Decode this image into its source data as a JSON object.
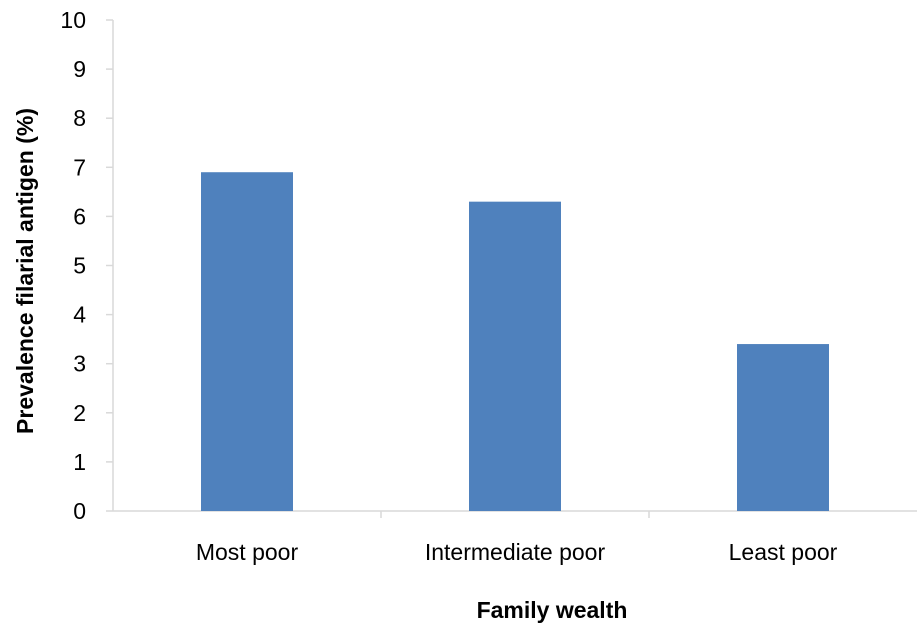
{
  "chart_data": {
    "type": "bar",
    "title": "",
    "xlabel": "Family wealth",
    "ylabel": "Prevalence filarial antigen (%)",
    "categories": [
      "Most poor",
      "Intermediate poor",
      "Least poor"
    ],
    "values": [
      6.9,
      6.3,
      3.4
    ],
    "ylim": [
      0,
      10
    ],
    "yticks": [
      "0",
      "1",
      "2",
      "3",
      "4",
      "5",
      "6",
      "7",
      "8",
      "9",
      "10"
    ],
    "grid": false,
    "legend": "none",
    "bar_color": "#4f81bd",
    "axis_color": "#d9d9d9"
  }
}
